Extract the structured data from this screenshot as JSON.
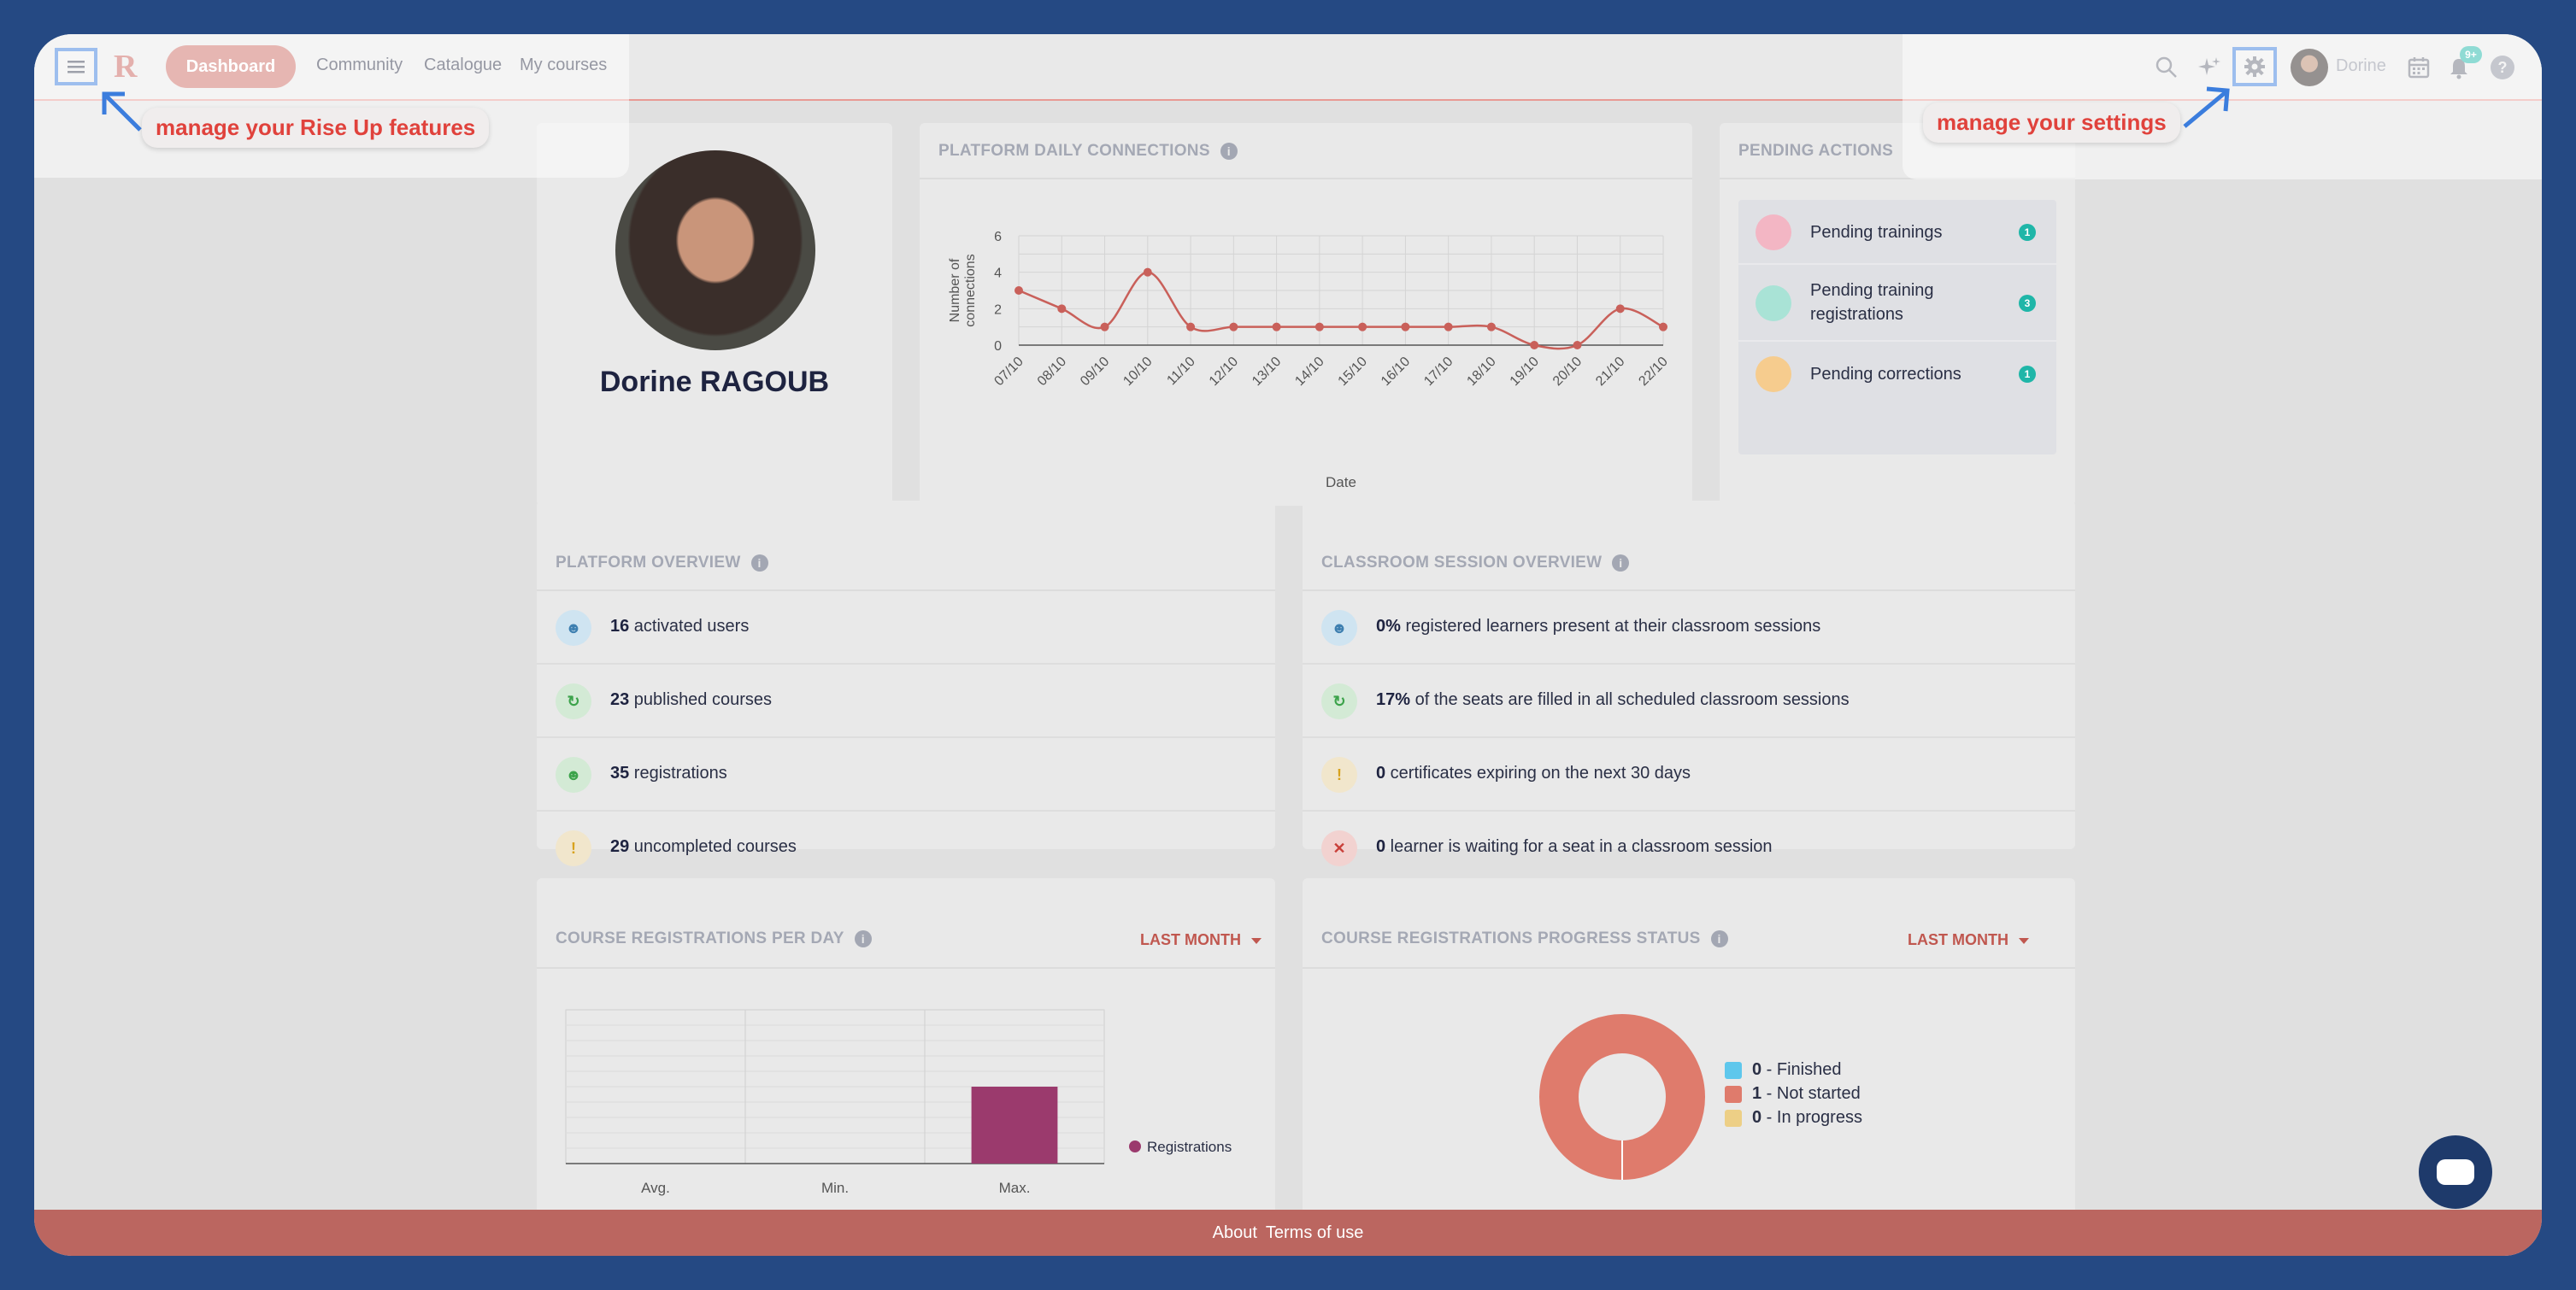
{
  "colors": {
    "accent": "#cc6c65",
    "highlight_border": "#3b7ddd",
    "callout_text": "#e0423c",
    "teal_badge": "#1fb6a8"
  },
  "nav": {
    "dashboard": "Dashboard",
    "community": "Community",
    "catalogue": "Catalogue",
    "my_courses": "My courses",
    "user_name": "Dorine",
    "notif_count": "9+",
    "help": "?"
  },
  "callouts": {
    "left": "manage your Rise Up features",
    "right": "manage your settings"
  },
  "profile": {
    "name": "Dorine RAGOUB"
  },
  "daily": {
    "title": "PLATFORM DAILY CONNECTIONS",
    "info": "i",
    "chart_data": {
      "type": "line",
      "title": "PLATFORM DAILY CONNECTIONS",
      "xlabel": "Date",
      "ylabel": "Number of connections",
      "ylabel_line1": "Number of",
      "ylabel_line2": "connections",
      "categories": [
        "07/10",
        "08/10",
        "09/10",
        "10/10",
        "11/10",
        "12/10",
        "13/10",
        "14/10",
        "15/10",
        "16/10",
        "17/10",
        "18/10",
        "19/10",
        "20/10",
        "21/10",
        "22/10"
      ],
      "values": [
        3,
        2,
        1,
        4,
        1,
        1,
        1,
        1,
        1,
        1,
        1,
        1,
        0,
        0,
        2,
        1
      ],
      "ylim": [
        0,
        6
      ],
      "yticks": [
        0,
        2,
        4,
        6
      ],
      "grid": true
    }
  },
  "pending": {
    "title": "PENDING ACTIONS",
    "items": [
      {
        "label": "Pending trainings",
        "count": "1"
      },
      {
        "label": "Pending training registrations",
        "count": "3"
      },
      {
        "label": "Pending corrections",
        "count": "1"
      }
    ]
  },
  "platform_overview": {
    "title": "PLATFORM OVERVIEW",
    "info": "i",
    "rows": [
      {
        "value": "16",
        "text": " activated users"
      },
      {
        "value": "23",
        "text": " published courses"
      },
      {
        "value": "35",
        "text": " registrations"
      },
      {
        "value": "29",
        "text": " uncompleted courses"
      }
    ]
  },
  "classroom_overview": {
    "title": "CLASSROOM SESSION OVERVIEW",
    "info": "i",
    "rows": [
      {
        "value": "0%",
        "text": " registered learners present at their classroom sessions"
      },
      {
        "value": "17%",
        "text": " of the seats are filled in all scheduled classroom sessions"
      },
      {
        "value": "0",
        "text": " certificates expiring on the next 30 days"
      },
      {
        "value": "0",
        "text": " learner is waiting for a seat in a classroom session"
      }
    ]
  },
  "reg_per_day": {
    "title": "COURSE REGISTRATIONS PER DAY",
    "info": "i",
    "period": "LAST MONTH",
    "chart_data": {
      "type": "bar",
      "categories": [
        "Avg.",
        "Min.",
        "Max."
      ],
      "series": [
        {
          "name": "Registrations",
          "values": [
            0,
            0,
            1
          ]
        }
      ],
      "ylim": [
        0,
        2
      ]
    }
  },
  "reg_progress": {
    "title": "COURSE REGISTRATIONS PROGRESS STATUS",
    "info": "i",
    "period": "LAST MONTH",
    "chart_data": {
      "type": "pie",
      "labels": [
        "Finished",
        "Not started",
        "In progress"
      ],
      "values": [
        0,
        1,
        0
      ],
      "colors": [
        "#5ec7ec",
        "#df7b6c",
        "#edcf86"
      ]
    },
    "legend": [
      {
        "value": "0",
        "label": " - Finished"
      },
      {
        "value": "1",
        "label": " - Not started"
      },
      {
        "value": "0",
        "label": " - In progress"
      }
    ]
  },
  "footer": {
    "about": "About",
    "terms": "Terms of use"
  }
}
